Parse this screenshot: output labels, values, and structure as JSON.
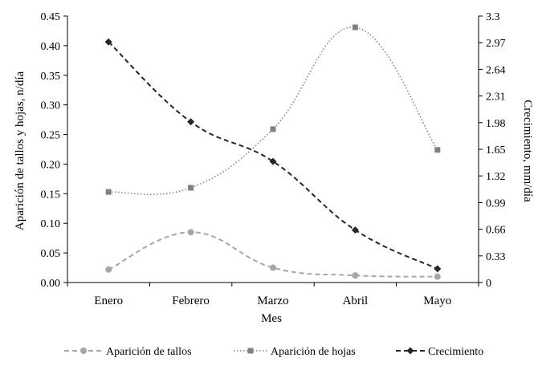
{
  "chart_data": {
    "type": "line",
    "categories": [
      "Enero",
      "Febrero",
      "Marzo",
      "Abril",
      "Mayo"
    ],
    "xlabel": "Mes",
    "ylabel_left": "Aparición de tallos y hojas, n/día",
    "ylabel_right": "Crecimiento, mm/día",
    "ylim_left": [
      0,
      0.45
    ],
    "ylim_right": [
      0,
      3.3
    ],
    "yticks_left": [
      "0.00",
      "0.05",
      "0.10",
      "0.15",
      "0.20",
      "0.25",
      "0.30",
      "0.35",
      "0.40",
      "0.45"
    ],
    "yticks_right": [
      "0",
      "0.33",
      "0.66",
      "0.99",
      "1.32",
      "1.65",
      "1.98",
      "2.31",
      "2.64",
      "2.97",
      "3.3"
    ],
    "grid": false,
    "legend_position": "bottom",
    "series": [
      {
        "name": "Aparición de tallos",
        "axis": "left",
        "values": [
          0.022,
          0.085,
          0.025,
          0.012,
          0.01
        ],
        "color": "#a6a6a6",
        "line_style": "dashed",
        "marker": "circle"
      },
      {
        "name": "Aparición de hojas",
        "axis": "left",
        "values": [
          0.153,
          0.16,
          0.259,
          0.431,
          0.224
        ],
        "color": "#808080",
        "line_style": "dotted",
        "marker": "square"
      },
      {
        "name": "Crecimiento",
        "axis": "right",
        "values": [
          2.98,
          1.99,
          1.5,
          0.65,
          0.17
        ],
        "color": "#262626",
        "line_style": "dashed",
        "marker": "diamond"
      }
    ]
  }
}
